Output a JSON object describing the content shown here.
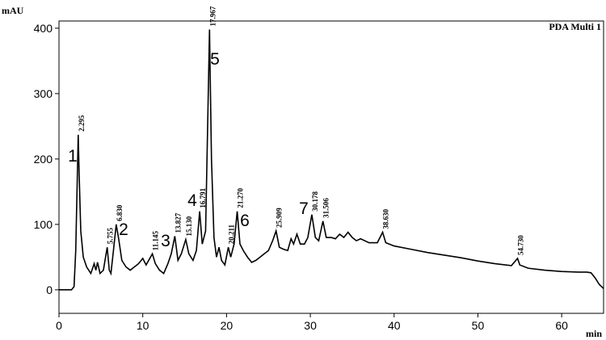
{
  "chart_data": {
    "type": "line",
    "title": "PDA Multi 1",
    "y_label": "mAU",
    "x_label": "min",
    "xlim": [
      0,
      65
    ],
    "ylim": [
      -36,
      411
    ],
    "xticks": [
      0,
      10,
      20,
      30,
      40,
      50,
      60
    ],
    "yticks": [
      0,
      100,
      200,
      300,
      400
    ],
    "x": [
      0,
      1,
      1.5,
      1.8,
      2.0,
      2.2,
      2.295,
      2.4,
      2.6,
      2.9,
      3.3,
      3.8,
      4.2,
      4.4,
      4.6,
      4.9,
      5.3,
      5.755,
      6.0,
      6.2,
      6.5,
      6.83,
      7.1,
      7.5,
      8.0,
      8.5,
      9.0,
      9.5,
      10.0,
      10.4,
      11.145,
      11.5,
      12.0,
      12.5,
      13.0,
      13.4,
      13.827,
      14.2,
      14.6,
      15.13,
      15.5,
      16.0,
      16.4,
      16.791,
      17.1,
      17.5,
      17.967,
      18.2,
      18.5,
      18.8,
      19.1,
      19.4,
      19.8,
      20.211,
      20.5,
      20.9,
      21.27,
      21.6,
      22.0,
      22.5,
      23.0,
      23.5,
      24.0,
      24.5,
      25.0,
      25.5,
      25.909,
      26.3,
      26.8,
      27.3,
      27.7,
      28.0,
      28.4,
      28.8,
      29.3,
      29.7,
      30.178,
      30.6,
      31.0,
      31.506,
      31.9,
      32.5,
      33.0,
      33.5,
      34.0,
      34.5,
      35.0,
      35.5,
      36.0,
      37.0,
      38.0,
      38.63,
      39.0,
      40.0,
      42.0,
      44.0,
      46.0,
      48.0,
      50.0,
      52.0,
      54.0,
      54.73,
      55.0,
      56.0,
      58.0,
      60.0,
      62.0,
      63.0,
      63.5,
      64.0,
      64.5,
      65.0
    ],
    "series": [
      {
        "name": "PDA Multi 1",
        "color": "#000000",
        "values": [
          0,
          0,
          0,
          5,
          60,
          180,
          237,
          180,
          90,
          50,
          35,
          25,
          40,
          30,
          42,
          25,
          30,
          65,
          30,
          25,
          60,
          100,
          80,
          45,
          35,
          30,
          35,
          40,
          48,
          38,
          55,
          40,
          30,
          25,
          40,
          55,
          82,
          45,
          55,
          77,
          55,
          45,
          60,
          120,
          70,
          90,
          398,
          200,
          80,
          50,
          65,
          45,
          38,
          65,
          50,
          70,
          120,
          70,
          60,
          50,
          42,
          45,
          50,
          55,
          60,
          75,
          90,
          65,
          62,
          60,
          78,
          70,
          85,
          70,
          70,
          80,
          115,
          80,
          75,
          105,
          80,
          80,
          78,
          85,
          80,
          88,
          80,
          75,
          78,
          72,
          72,
          88,
          72,
          67,
          62,
          57,
          53,
          49,
          44,
          40,
          37,
          48,
          38,
          33,
          30,
          28,
          27,
          27,
          26,
          18,
          8,
          2
        ]
      }
    ],
    "peak_times": [
      2.295,
      5.755,
      6.83,
      11.145,
      13.827,
      15.13,
      16.791,
      17.967,
      20.211,
      21.27,
      25.909,
      30.178,
      31.506,
      38.63,
      54.73
    ],
    "peak_time_labels": [
      "2.295",
      "5.755",
      "6.830",
      "11.145",
      "13.827",
      "15.130",
      "16.791",
      "17.967",
      "20.211",
      "21.270",
      "25.909",
      "30.178",
      "31.506",
      "38.630",
      "54.730"
    ],
    "peak_numbers": [
      1,
      2,
      3,
      4,
      5,
      6,
      7
    ]
  }
}
